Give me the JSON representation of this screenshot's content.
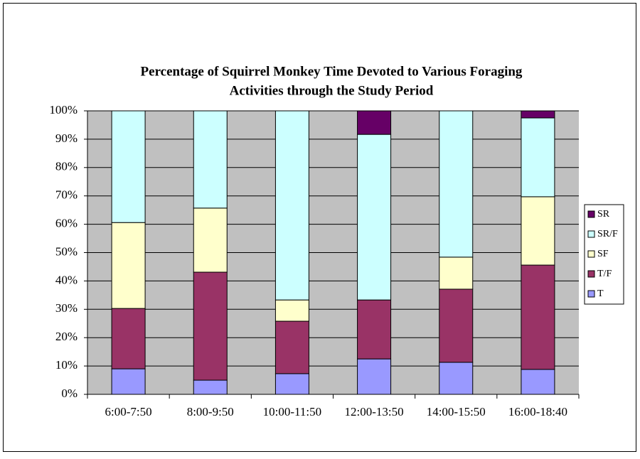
{
  "chart_data": {
    "type": "stacked_bar",
    "title": [
      "Percentage of Squirrel Monkey Time Devoted to Various Foraging",
      "Activities through the Study Period"
    ],
    "categories": [
      "6:00-7:50",
      "8:00-9:50",
      "10:00-11:50",
      "12:00-13:50",
      "14:00-15:50",
      "16:00-18:40"
    ],
    "series": [
      {
        "name": "T",
        "color": "#9999ff",
        "values": [
          9.0,
          5.0,
          7.3,
          12.5,
          11.3,
          8.8
        ]
      },
      {
        "name": "T/F",
        "color": "#993366",
        "values": [
          21.3,
          38.1,
          18.5,
          20.8,
          25.8,
          36.8
        ]
      },
      {
        "name": "SF",
        "color": "#ffffcc",
        "values": [
          30.3,
          22.6,
          7.5,
          0,
          11.3,
          24.1
        ]
      },
      {
        "name": "SR/F",
        "color": "#ccffff",
        "values": [
          39.4,
          34.3,
          66.7,
          58.4,
          51.6,
          27.8
        ]
      },
      {
        "name": "SR",
        "color": "#660066",
        "values": [
          0,
          0,
          0,
          8.3,
          0,
          2.5
        ]
      }
    ],
    "ylim": [
      0,
      100
    ],
    "yticks": [
      {
        "value": 0,
        "label": "0%"
      },
      {
        "value": 10,
        "label": "10%"
      },
      {
        "value": 20,
        "label": "20%"
      },
      {
        "value": 30,
        "label": "30%"
      },
      {
        "value": 40,
        "label": "40%"
      },
      {
        "value": 50,
        "label": "50%"
      },
      {
        "value": 60,
        "label": "60%"
      },
      {
        "value": 70,
        "label": "70%"
      },
      {
        "value": 80,
        "label": "80%"
      },
      {
        "value": 90,
        "label": "90%"
      },
      {
        "value": 100,
        "label": "100%"
      }
    ],
    "grid": true,
    "legend": "right",
    "plot_background": "#c0c0c0"
  }
}
